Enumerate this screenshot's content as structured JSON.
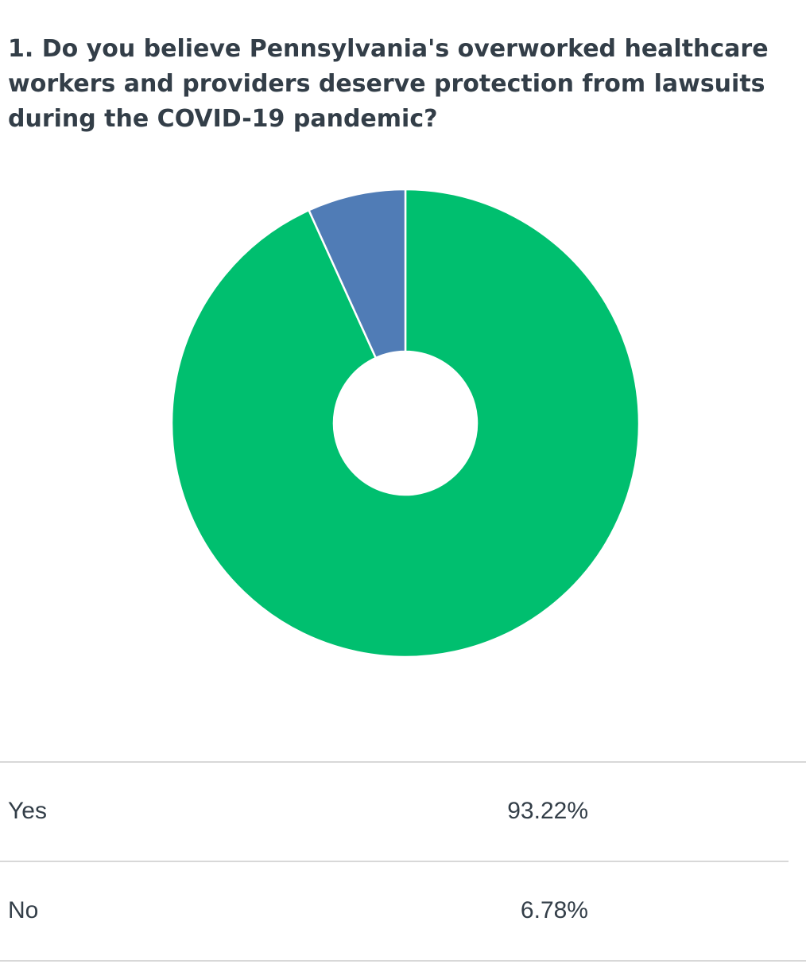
{
  "chart_data": {
    "type": "pie",
    "donut": true,
    "title": "1. Do you believe Pennsylvania's overworked healthcare workers and providers deserve protection from lawsuits during the COVID-19 pandemic?",
    "categories": [
      "Yes",
      "No"
    ],
    "values": [
      93.22,
      6.78
    ],
    "value_labels": [
      "93.22%",
      "6.78%"
    ],
    "colors": [
      "#00bf6f",
      "#507cb6"
    ]
  }
}
